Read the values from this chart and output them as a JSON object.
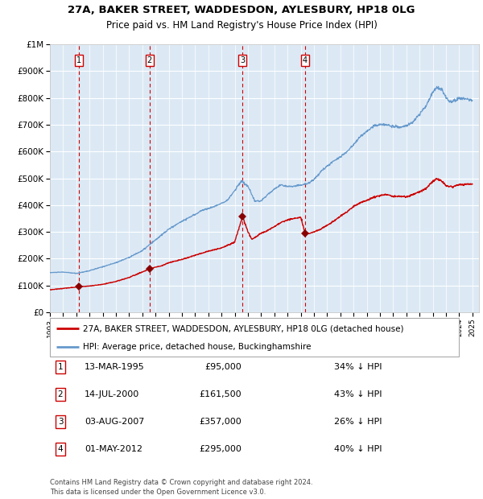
{
  "title_line1": "27A, BAKER STREET, WADDESDON, AYLESBURY, HP18 0LG",
  "title_line2": "Price paid vs. HM Land Registry's House Price Index (HPI)",
  "legend_label_red": "27A, BAKER STREET, WADDESDON, AYLESBURY, HP18 0LG (detached house)",
  "legend_label_blue": "HPI: Average price, detached house, Buckinghamshire",
  "footer_line1": "Contains HM Land Registry data © Crown copyright and database right 2024.",
  "footer_line2": "This data is licensed under the Open Government Licence v3.0.",
  "transactions": [
    {
      "num": 1,
      "date": "13-MAR-1995",
      "price": "£95,000",
      "pct": "34% ↓ HPI",
      "year_x": 1995.2
    },
    {
      "num": 2,
      "date": "14-JUL-2000",
      "price": "£161,500",
      "pct": "43% ↓ HPI",
      "year_x": 2000.54
    },
    {
      "num": 3,
      "date": "03-AUG-2007",
      "price": "£357,000",
      "pct": "26% ↓ HPI",
      "year_x": 2007.59
    },
    {
      "num": 4,
      "date": "01-MAY-2012",
      "price": "£295,000",
      "pct": "40% ↓ HPI",
      "year_x": 2012.33
    }
  ],
  "sale_prices": [
    95000,
    161500,
    357000,
    295000
  ],
  "red_color": "#cc0000",
  "blue_color": "#6699cc",
  "bg_color": "#dce9f5",
  "grid_color": "#ffffff",
  "vline_color": "#cc0000",
  "box_edge_color": "#cc0000",
  "ytick_labels": [
    "£0",
    "£100K",
    "£200K",
    "£300K",
    "£400K",
    "£500K",
    "£600K",
    "£700K",
    "£800K",
    "£900K",
    "£1M"
  ],
  "xlim_start": 1993.0,
  "xlim_end": 2025.5,
  "ylim_min": 0,
  "ylim_max": 1000000
}
